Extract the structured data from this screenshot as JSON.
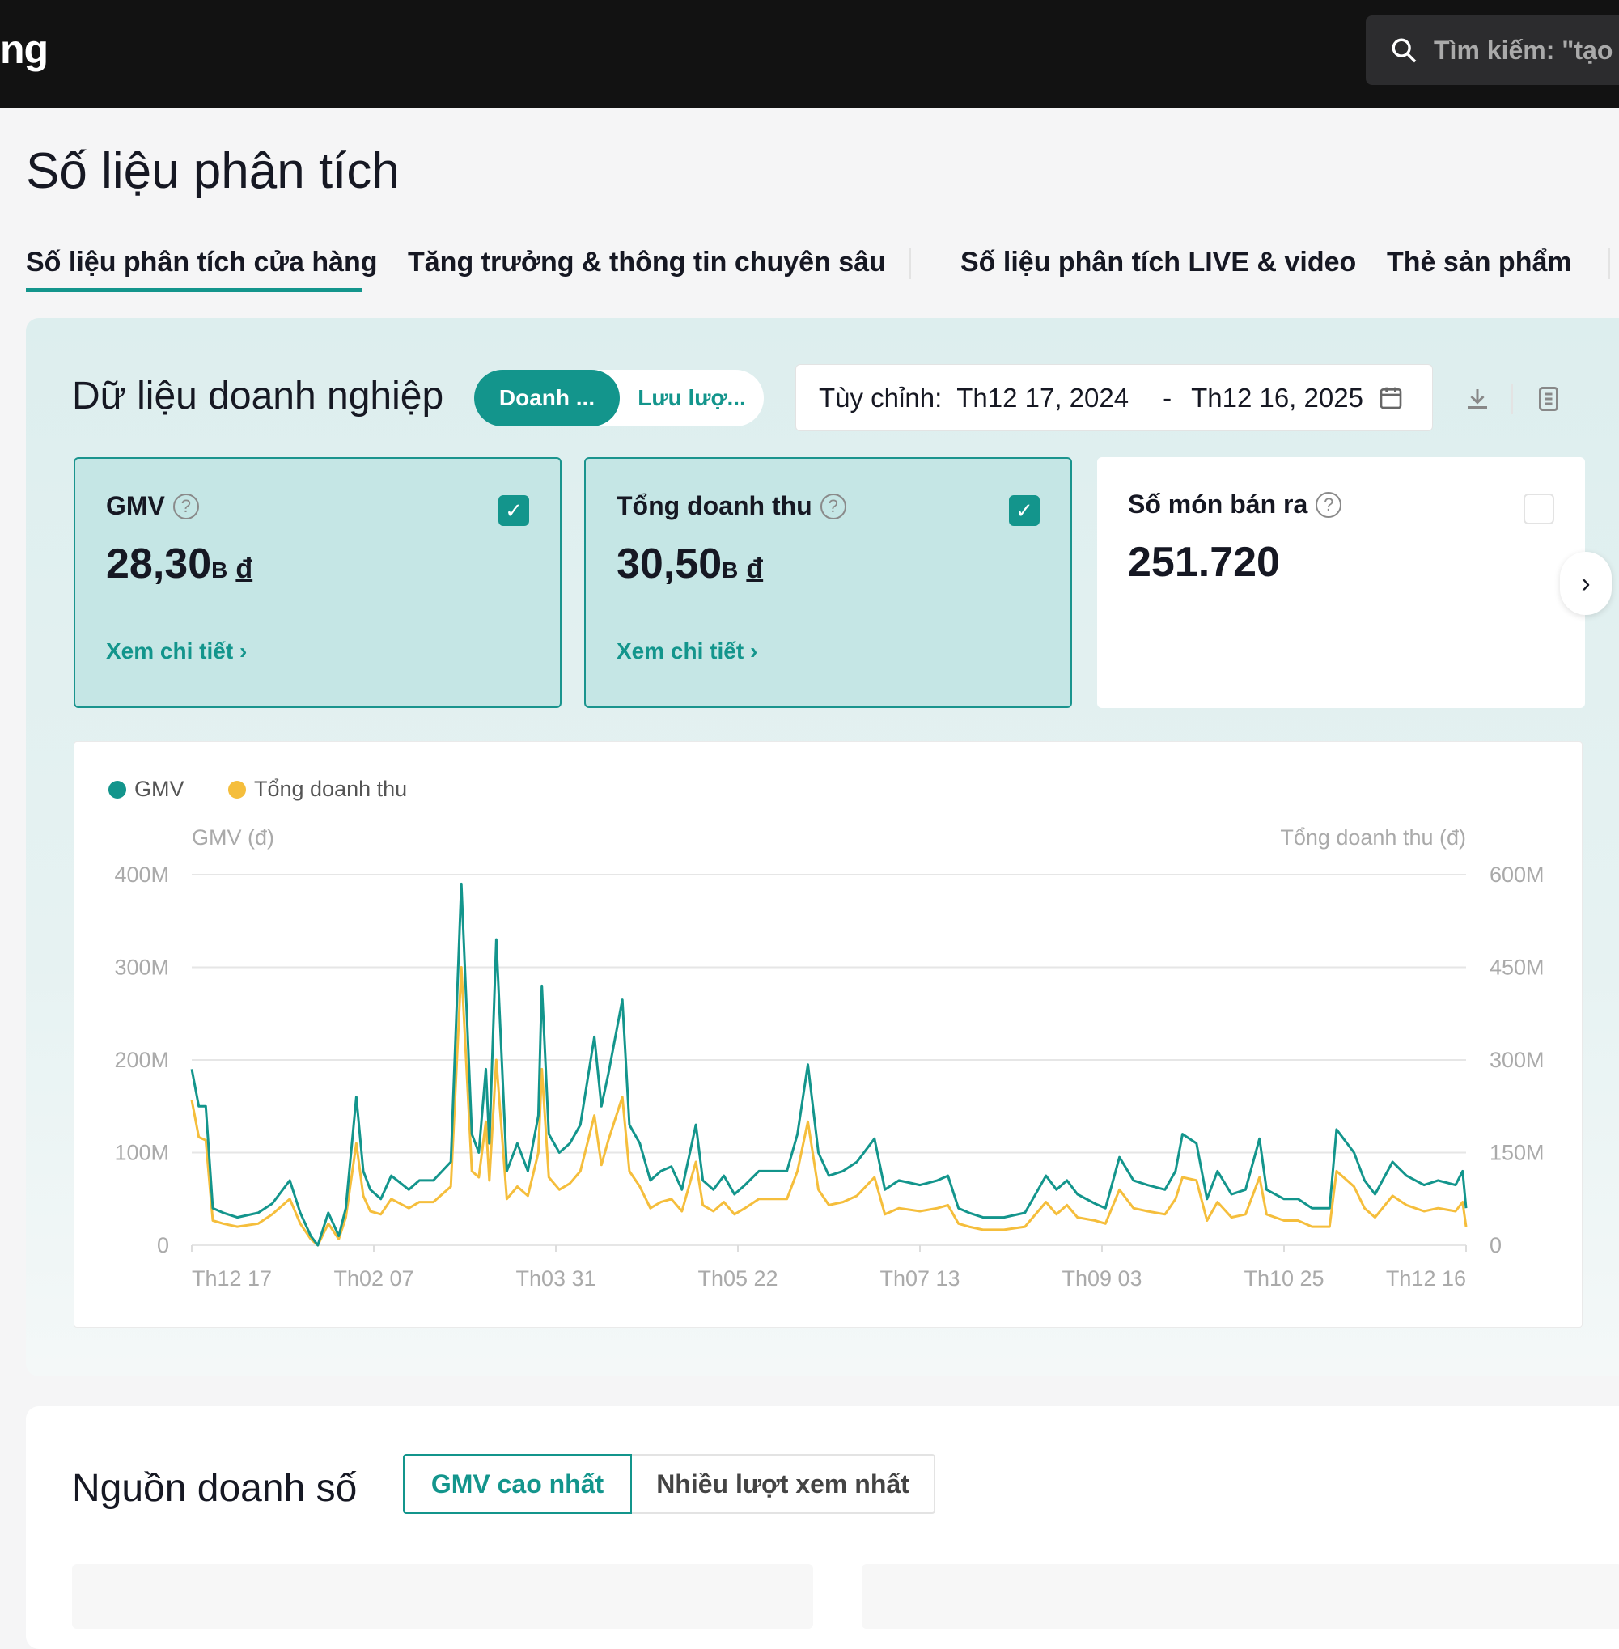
{
  "header": {
    "brand_partial": "ng",
    "search_placeholder": "Tìm kiếm: \"tạo"
  },
  "page_title": "Số liệu phân tích",
  "tabs": [
    {
      "label": "Số liệu phân tích cửa hàng",
      "active": true
    },
    {
      "label": "Tăng trưởng & thông tin chuyên sâu",
      "active": false
    },
    {
      "label": "Số liệu phân tích LIVE & video",
      "active": false
    },
    {
      "label": "Thẻ sản phẩm",
      "active": false
    }
  ],
  "business": {
    "title": "Dữ liệu doanh nghiệp",
    "toggle": {
      "active": "Doanh ...",
      "inactive": "Lưu lượ..."
    },
    "date": {
      "label": "Tùy chỉnh:",
      "start": "Th12 17, 2024",
      "sep": "-",
      "end": "Th12 16, 2025"
    },
    "cards": [
      {
        "label": "GMV",
        "value": "28,30",
        "unit": "B",
        "currency": "đ",
        "link": "Xem chi tiết ›",
        "checked": true
      },
      {
        "label": "Tổng doanh thu",
        "value": "30,50",
        "unit": "B",
        "currency": "đ",
        "link": "Xem chi tiết ›",
        "checked": true
      },
      {
        "label": "Số món bán ra",
        "value": "251.720",
        "checked": false
      }
    ]
  },
  "colors": {
    "accent": "#13958c",
    "gmv": "#13958c",
    "revenue": "#f5be3c"
  },
  "chart_data": {
    "type": "line",
    "legend": [
      "GMV",
      "Tổng doanh thu"
    ],
    "legend_position": "top-left",
    "ylabel_left": "GMV (đ)",
    "ylabel_right": "Tổng doanh thu (đ)",
    "ylim_left": [
      0,
      400000000
    ],
    "ylim_right": [
      0,
      600000000
    ],
    "yticks_left": [
      "0",
      "100M",
      "200M",
      "300M",
      "400M"
    ],
    "yticks_right": [
      "0",
      "150M",
      "300M",
      "450M",
      "600M"
    ],
    "xticks": [
      "Th12 17",
      "Th02 07",
      "Th03 31",
      "Th05 22",
      "Th07 13",
      "Th09 03",
      "Th10 25",
      "Th12 16"
    ],
    "xtick_dates": [
      "2024-12-17",
      "2025-02-07",
      "2025-03-31",
      "2025-05-22",
      "2025-07-13",
      "2025-09-03",
      "2025-10-25",
      "2025-12-16"
    ],
    "grid": true,
    "x": [
      "2024-12-17",
      "2024-12-19",
      "2024-12-21",
      "2024-12-23",
      "2024-12-26",
      "2024-12-30",
      "2025-01-05",
      "2025-01-09",
      "2025-01-14",
      "2025-01-17",
      "2025-01-20",
      "2025-01-22",
      "2025-01-25",
      "2025-01-28",
      "2025-01-30",
      "2025-02-02",
      "2025-02-04",
      "2025-02-06",
      "2025-02-09",
      "2025-02-12",
      "2025-02-17",
      "2025-02-20",
      "2025-02-24",
      "2025-03-01",
      "2025-03-04",
      "2025-03-07",
      "2025-03-09",
      "2025-03-11",
      "2025-03-12",
      "2025-03-14",
      "2025-03-17",
      "2025-03-20",
      "2025-03-23",
      "2025-03-26",
      "2025-03-27",
      "2025-03-29",
      "2025-04-01",
      "2025-04-04",
      "2025-04-07",
      "2025-04-11",
      "2025-04-13",
      "2025-04-15",
      "2025-04-19",
      "2025-04-21",
      "2025-04-24",
      "2025-04-27",
      "2025-04-30",
      "2025-05-03",
      "2025-05-06",
      "2025-05-10",
      "2025-05-12",
      "2025-05-15",
      "2025-05-18",
      "2025-05-21",
      "2025-05-24",
      "2025-05-28",
      "2025-06-05",
      "2025-06-08",
      "2025-06-11",
      "2025-06-14",
      "2025-06-17",
      "2025-06-21",
      "2025-06-25",
      "2025-06-30",
      "2025-07-03",
      "2025-07-07",
      "2025-07-13",
      "2025-07-18",
      "2025-07-21",
      "2025-07-24",
      "2025-07-27",
      "2025-07-31",
      "2025-08-06",
      "2025-08-12",
      "2025-08-18",
      "2025-08-21",
      "2025-08-24",
      "2025-08-27",
      "2025-09-01",
      "2025-09-04",
      "2025-09-08",
      "2025-09-12",
      "2025-09-16",
      "2025-09-21",
      "2025-09-24",
      "2025-09-26",
      "2025-09-30",
      "2025-10-03",
      "2025-10-06",
      "2025-10-10",
      "2025-10-14",
      "2025-10-18",
      "2025-10-20",
      "2025-10-25",
      "2025-10-29",
      "2025-11-02",
      "2025-11-07",
      "2025-11-09",
      "2025-11-12",
      "2025-11-14",
      "2025-11-17",
      "2025-11-20",
      "2025-11-25",
      "2025-11-29",
      "2025-12-04",
      "2025-12-08",
      "2025-12-13",
      "2025-12-15",
      "2025-12-16"
    ],
    "series": [
      {
        "name": "GMV",
        "unit": "M",
        "values": [
          190,
          150,
          150,
          40,
          35,
          30,
          35,
          45,
          70,
          35,
          10,
          0,
          35,
          10,
          40,
          160,
          80,
          60,
          50,
          75,
          60,
          70,
          70,
          90,
          390,
          120,
          100,
          190,
          110,
          330,
          80,
          110,
          80,
          140,
          280,
          120,
          100,
          110,
          130,
          225,
          150,
          185,
          265,
          130,
          110,
          70,
          80,
          85,
          60,
          130,
          70,
          60,
          75,
          55,
          65,
          80,
          80,
          120,
          195,
          100,
          75,
          80,
          90,
          115,
          60,
          70,
          65,
          70,
          75,
          40,
          35,
          30,
          30,
          35,
          75,
          60,
          70,
          55,
          45,
          40,
          95,
          70,
          65,
          60,
          80,
          120,
          110,
          50,
          80,
          55,
          60,
          115,
          60,
          50,
          50,
          40,
          40,
          125,
          110,
          100,
          70,
          55,
          90,
          75,
          65,
          70,
          65,
          80,
          40
        ]
      },
      {
        "name": "Tổng doanh thu",
        "unit": "M",
        "values": [
          235,
          175,
          170,
          40,
          35,
          30,
          35,
          50,
          75,
          35,
          10,
          0,
          35,
          10,
          45,
          165,
          80,
          55,
          50,
          75,
          60,
          70,
          70,
          95,
          450,
          120,
          110,
          200,
          105,
          300,
          75,
          95,
          80,
          150,
          285,
          110,
          90,
          100,
          120,
          210,
          130,
          170,
          240,
          120,
          95,
          60,
          70,
          75,
          55,
          135,
          65,
          55,
          70,
          50,
          60,
          75,
          75,
          120,
          200,
          90,
          65,
          70,
          80,
          110,
          50,
          60,
          55,
          60,
          65,
          35,
          30,
          25,
          25,
          30,
          70,
          50,
          65,
          45,
          40,
          35,
          90,
          60,
          55,
          50,
          75,
          110,
          105,
          40,
          70,
          45,
          50,
          110,
          50,
          40,
          40,
          30,
          30,
          120,
          105,
          95,
          60,
          45,
          80,
          65,
          55,
          60,
          55,
          70,
          30
        ]
      }
    ]
  },
  "sales_source": {
    "title": "Nguồn doanh số",
    "tabs": [
      "GMV cao nhất",
      "Nhiều lượt xem nhất"
    ]
  }
}
